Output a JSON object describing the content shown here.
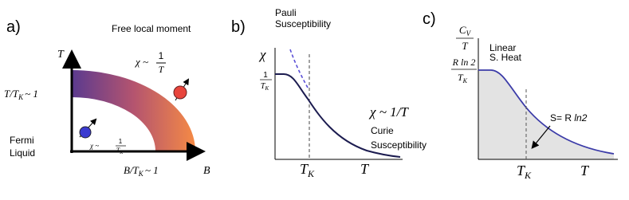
{
  "panel_a": {
    "label": "a)",
    "y_axis": "T",
    "x_axis": "B",
    "title": "Free local moment",
    "chi_high": {
      "lhs": "χ ~",
      "num": "1",
      "den": "T"
    },
    "y_marker": {
      "main": "T/T",
      "sub": "K",
      "rest": "~ 1"
    },
    "fermi": [
      "Fermi",
      "Liquid"
    ],
    "chi_low": {
      "lhs": "χ ~",
      "num": "1",
      "den": "T",
      "sub": "K"
    },
    "x_marker": {
      "main": "B/T",
      "sub": "K",
      "rest": "~ 1"
    }
  },
  "panel_b": {
    "label": "b)",
    "pauli": [
      "Pauli",
      "Susceptibility"
    ],
    "y_axis": "χ",
    "y_mark": {
      "num": "1",
      "den": "T",
      "sub": "K"
    },
    "curie_law": "χ ~ 1/T",
    "curie": [
      "Curie",
      "Susceptibility"
    ],
    "x_mark": {
      "main": "T",
      "sub": "K"
    },
    "x_axis": "T"
  },
  "panel_c": {
    "label": "c)",
    "y_axis": {
      "num": "C",
      "num_sub": "V",
      "den": "T"
    },
    "linear": [
      "Linear",
      "S. Heat"
    ],
    "y_mark": {
      "num": "R ln 2",
      "den": "T",
      "sub": "K"
    },
    "entropy": {
      "prefix": "S= R ",
      "ln": "ln2"
    },
    "x_mark": {
      "main": "T",
      "sub": "K"
    },
    "x_axis": "T"
  }
}
